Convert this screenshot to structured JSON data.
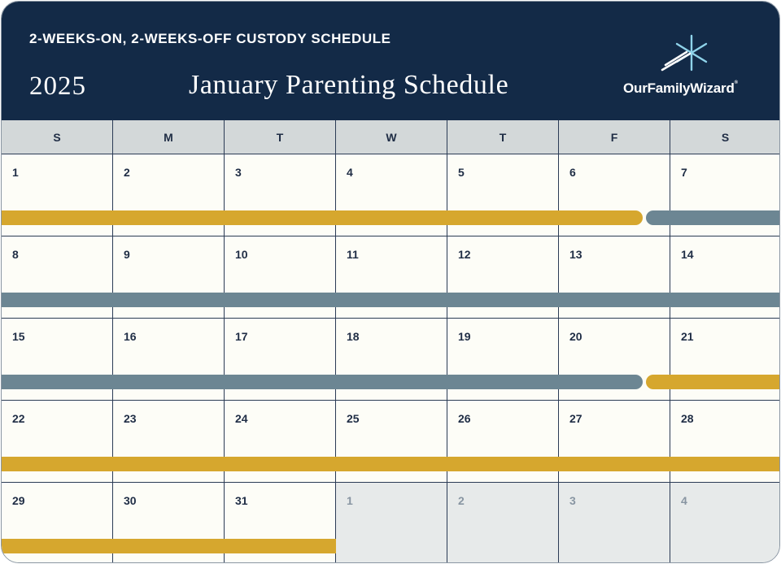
{
  "header": {
    "subtitle": "2-WEEKS-ON, 2-WEEKS-OFF CUSTODY SCHEDULE",
    "year": "2025",
    "title": "January Parenting Schedule",
    "logo_text": "OurFamilyWizard"
  },
  "weekdays": [
    "S",
    "M",
    "T",
    "W",
    "T",
    "F",
    "S"
  ],
  "weeks": [
    [
      "1",
      "2",
      "3",
      "4",
      "5",
      "6",
      "7"
    ],
    [
      "8",
      "9",
      "10",
      "11",
      "12",
      "13",
      "14"
    ],
    [
      "15",
      "16",
      "17",
      "18",
      "19",
      "20",
      "21"
    ],
    [
      "22",
      "23",
      "24",
      "25",
      "26",
      "27",
      "28"
    ],
    [
      "29",
      "30",
      "31",
      "1",
      "2",
      "3",
      "4"
    ]
  ],
  "colors": {
    "header_bg": "#132a47",
    "parent_a": "#d6a72e",
    "parent_b": "#6c8693",
    "other_month_bg": "#e7eaea"
  }
}
